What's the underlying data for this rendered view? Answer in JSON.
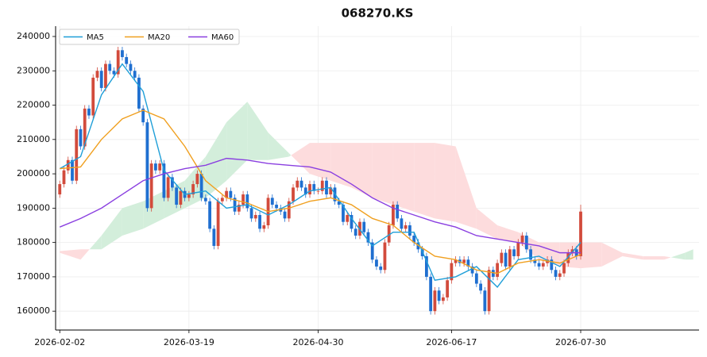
{
  "chart_data": {
    "type": "candlestick",
    "title": "068270.KS",
    "categories": [
      "2026-02-02",
      null,
      null,
      null,
      null,
      null,
      null,
      null,
      null,
      null,
      null,
      null,
      null,
      null,
      null,
      null,
      null,
      null,
      null,
      null,
      null,
      null,
      null,
      null,
      null,
      null,
      null,
      null,
      null,
      null,
      null,
      "2026-03-19",
      null,
      null,
      null,
      null,
      null,
      null,
      null,
      null,
      null,
      null,
      null,
      null,
      null,
      null,
      null,
      null,
      null,
      null,
      null,
      null,
      null,
      null,
      null,
      null,
      null,
      null,
      null,
      null,
      null,
      null,
      "2026-04-30",
      null,
      null,
      null,
      null,
      null,
      null,
      null,
      null,
      null,
      null,
      null,
      null,
      null,
      null,
      null,
      null,
      null,
      null,
      null,
      null,
      null,
      null,
      null,
      null,
      null,
      null,
      null,
      null,
      null,
      null,
      null,
      "2026-06-17",
      null,
      null,
      null,
      null,
      null,
      null,
      null,
      null,
      null,
      null,
      null,
      null,
      null,
      null,
      null,
      null,
      null,
      null,
      null,
      null,
      null,
      null,
      null,
      null,
      null,
      null,
      null,
      null,
      null,
      null,
      "2026-07-30"
    ],
    "xlim": [
      -1,
      153.4
    ],
    "ylim": [
      154500,
      243000
    ],
    "yticks": [
      160000,
      170000,
      180000,
      190000,
      200000,
      210000,
      220000,
      230000,
      240000
    ],
    "grid": true,
    "legend": "upper left",
    "up_color": "#d24b3c",
    "down_color": "#1f6fd0",
    "ohlc": [
      [
        194000,
        198000,
        193000,
        197000
      ],
      [
        197000,
        202000,
        196000,
        201000
      ],
      [
        201000,
        205000,
        200000,
        204000
      ],
      [
        204000,
        205000,
        197000,
        198000
      ],
      [
        198000,
        214000,
        197000,
        213000
      ],
      [
        213000,
        214000,
        207000,
        208000
      ],
      [
        208000,
        220000,
        207000,
        219000
      ],
      [
        219000,
        220000,
        216000,
        217000
      ],
      [
        217000,
        229000,
        216000,
        228000
      ],
      [
        228000,
        231000,
        227000,
        230000
      ],
      [
        230000,
        231000,
        224000,
        225000
      ],
      [
        225000,
        233000,
        224000,
        232000
      ],
      [
        232000,
        233000,
        229000,
        230000
      ],
      [
        230000,
        231000,
        228000,
        229000
      ],
      [
        229000,
        237000,
        228000,
        236000
      ],
      [
        236000,
        237000,
        233000,
        234000
      ],
      [
        234000,
        235000,
        231000,
        232000
      ],
      [
        232000,
        233000,
        229000,
        230000
      ],
      [
        230000,
        231000,
        227000,
        228000
      ],
      [
        228000,
        229000,
        218000,
        219000
      ],
      [
        219000,
        220000,
        214000,
        215000
      ],
      [
        215000,
        216000,
        189000,
        190000
      ],
      [
        190000,
        204000,
        189000,
        203000
      ],
      [
        203000,
        204000,
        200000,
        201000
      ],
      [
        201000,
        204000,
        200000,
        203000
      ],
      [
        203000,
        204000,
        192000,
        193000
      ],
      [
        193000,
        200000,
        192000,
        199000
      ],
      [
        199000,
        200000,
        195000,
        196000
      ],
      [
        196000,
        197000,
        190000,
        191000
      ],
      [
        191000,
        196000,
        190000,
        195000
      ],
      [
        195000,
        196000,
        192000,
        193000
      ],
      [
        193000,
        195000,
        192000,
        194000
      ],
      [
        194000,
        198000,
        193000,
        197000
      ],
      [
        197000,
        201000,
        196000,
        200000
      ],
      [
        200000,
        201000,
        192000,
        193000
      ],
      [
        193000,
        194000,
        191000,
        192000
      ],
      [
        192000,
        193000,
        183000,
        184000
      ],
      [
        184000,
        185000,
        178000,
        179000
      ],
      [
        179000,
        193000,
        178000,
        192000
      ],
      [
        192000,
        194000,
        191000,
        193000
      ],
      [
        193000,
        196000,
        192000,
        195000
      ],
      [
        195000,
        196000,
        192000,
        193000
      ],
      [
        193000,
        194000,
        188000,
        189000
      ],
      [
        189000,
        192000,
        188000,
        191000
      ],
      [
        191000,
        195000,
        190000,
        194000
      ],
      [
        194000,
        195000,
        189000,
        190000
      ],
      [
        190000,
        191000,
        186000,
        187000
      ],
      [
        187000,
        189000,
        186000,
        188000
      ],
      [
        188000,
        189000,
        183000,
        184000
      ],
      [
        184000,
        186000,
        183000,
        185000
      ],
      [
        185000,
        194000,
        184000,
        193000
      ],
      [
        193000,
        194000,
        190000,
        191000
      ],
      [
        191000,
        192000,
        189000,
        190000
      ],
      [
        190000,
        191000,
        188000,
        189000
      ],
      [
        189000,
        190000,
        186000,
        187000
      ],
      [
        187000,
        193000,
        186000,
        192000
      ],
      [
        192000,
        197000,
        191000,
        196000
      ],
      [
        196000,
        199000,
        195000,
        198000
      ],
      [
        198000,
        199000,
        195000,
        196000
      ],
      [
        196000,
        197000,
        193000,
        194000
      ],
      [
        194000,
        198000,
        193000,
        197000
      ],
      [
        197000,
        198000,
        194000,
        195000
      ],
      [
        195000,
        196000,
        194000,
        195000
      ],
      [
        195000,
        199000,
        194000,
        198000
      ],
      [
        198000,
        199000,
        193000,
        194000
      ],
      [
        194000,
        197000,
        193000,
        196000
      ],
      [
        196000,
        197000,
        191000,
        192000
      ],
      [
        192000,
        193000,
        190000,
        191000
      ],
      [
        191000,
        192000,
        185000,
        186000
      ],
      [
        186000,
        189000,
        185000,
        188000
      ],
      [
        188000,
        189000,
        183000,
        184000
      ],
      [
        184000,
        185000,
        181000,
        182000
      ],
      [
        182000,
        187000,
        181000,
        186000
      ],
      [
        186000,
        187000,
        182000,
        183000
      ],
      [
        183000,
        184000,
        179000,
        180000
      ],
      [
        180000,
        181000,
        174000,
        175000
      ],
      [
        175000,
        176000,
        172000,
        173000
      ],
      [
        173000,
        174000,
        171000,
        172000
      ],
      [
        172000,
        181000,
        171000,
        180000
      ],
      [
        180000,
        186000,
        179000,
        185000
      ],
      [
        185000,
        192000,
        184000,
        191000
      ],
      [
        191000,
        192000,
        186000,
        187000
      ],
      [
        187000,
        188000,
        183000,
        184000
      ],
      [
        184000,
        186000,
        183000,
        185000
      ],
      [
        185000,
        186000,
        181000,
        182000
      ],
      [
        182000,
        183000,
        179000,
        180000
      ],
      [
        180000,
        181000,
        177000,
        178000
      ],
      [
        178000,
        179000,
        175000,
        176000
      ],
      [
        176000,
        177000,
        169000,
        170000
      ],
      [
        170000,
        171000,
        159000,
        160000
      ],
      [
        160000,
        167000,
        159000,
        166000
      ],
      [
        166000,
        167000,
        162000,
        163000
      ],
      [
        163000,
        165000,
        162000,
        164000
      ],
      [
        164000,
        170000,
        163000,
        169000
      ],
      [
        169000,
        175000,
        168000,
        174000
      ],
      [
        174000,
        176000,
        173000,
        175000
      ],
      [
        175000,
        176000,
        173000,
        174000
      ],
      [
        174000,
        176000,
        173000,
        175000
      ],
      [
        175000,
        176000,
        172000,
        173000
      ],
      [
        173000,
        174000,
        170000,
        171000
      ],
      [
        171000,
        172000,
        167000,
        168000
      ],
      [
        168000,
        169000,
        165000,
        166000
      ],
      [
        166000,
        167000,
        159000,
        160000
      ],
      [
        160000,
        173000,
        159000,
        172000
      ],
      [
        172000,
        173000,
        169000,
        170000
      ],
      [
        170000,
        175000,
        169000,
        174000
      ],
      [
        174000,
        178000,
        173000,
        177000
      ],
      [
        177000,
        178000,
        172000,
        173000
      ],
      [
        173000,
        179000,
        172000,
        178000
      ],
      [
        178000,
        179000,
        175000,
        176000
      ],
      [
        176000,
        181000,
        175000,
        180000
      ],
      [
        180000,
        183000,
        179000,
        182000
      ],
      [
        182000,
        183000,
        177000,
        178000
      ],
      [
        178000,
        179000,
        174000,
        175000
      ],
      [
        175000,
        176000,
        173000,
        174000
      ],
      [
        174000,
        175000,
        172000,
        173000
      ],
      [
        173000,
        175000,
        172000,
        174000
      ],
      [
        174000,
        176000,
        173000,
        175000
      ],
      [
        175000,
        176000,
        171000,
        172000
      ],
      [
        172000,
        173000,
        169000,
        170000
      ],
      [
        170000,
        172000,
        169000,
        171000
      ],
      [
        171000,
        175000,
        170000,
        174000
      ],
      [
        174000,
        178000,
        173000,
        177000
      ],
      [
        177000,
        179000,
        176000,
        178000
      ],
      [
        178000,
        179000,
        175000,
        176000
      ],
      [
        176000,
        191000,
        175000,
        189000
      ]
    ],
    "series": [
      {
        "name": "MA5",
        "color": "#1f9fd8",
        "x": [
          0,
          5,
          10,
          15,
          20,
          25,
          30,
          35,
          40,
          45,
          50,
          55,
          60,
          65,
          70,
          75,
          80,
          85,
          90,
          95,
          100,
          105,
          110,
          115,
          120,
          125
        ],
        "values": [
          201500,
          205000,
          223000,
          232000,
          224000,
          201000,
          194000,
          195000,
          190000,
          191000,
          188000,
          191000,
          195000,
          196000,
          187000,
          179000,
          183000,
          183000,
          169000,
          170000,
          173000,
          167000,
          175000,
          176000,
          173000,
          180000
        ]
      },
      {
        "name": "MA20",
        "color": "#f0a020",
        "x": [
          0,
          5,
          10,
          15,
          20,
          25,
          30,
          35,
          40,
          45,
          50,
          55,
          60,
          65,
          70,
          75,
          80,
          85,
          90,
          95,
          100,
          105,
          110,
          115,
          120,
          125
        ],
        "values": [
          201500,
          202000,
          210000,
          216000,
          218500,
          216000,
          208000,
          198000,
          193000,
          191500,
          189000,
          190000,
          192000,
          193000,
          191000,
          187000,
          185000,
          180000,
          176000,
          175000,
          172000,
          171000,
          174000,
          175000,
          174000,
          176500
        ]
      },
      {
        "name": "MA60",
        "color": "#8a3fe0",
        "x": [
          0,
          5,
          10,
          15,
          20,
          25,
          30,
          35,
          40,
          45,
          50,
          55,
          60,
          65,
          70,
          75,
          80,
          85,
          90,
          95,
          100,
          105,
          110,
          115,
          120,
          125
        ],
        "values": [
          184500,
          187000,
          190000,
          194000,
          198000,
          200000,
          201500,
          202500,
          204500,
          204000,
          203000,
          202500,
          202000,
          200500,
          197000,
          193000,
          190000,
          188000,
          186000,
          184500,
          182000,
          181000,
          180000,
          179000,
          177000,
          177000
        ]
      }
    ],
    "cloud": {
      "bull_color": "#d3eedb",
      "bear_color": "#fddcdd",
      "x": [
        0,
        5,
        10,
        15,
        20,
        25,
        30,
        35,
        40,
        45,
        50,
        55,
        60,
        65,
        70,
        75,
        80,
        85,
        90,
        95,
        100,
        105,
        110,
        115,
        120,
        125,
        130,
        135,
        140,
        145,
        150,
        152
      ],
      "span_a": [
        177000,
        175000,
        182000,
        190000,
        192000,
        195000,
        198000,
        205000,
        215000,
        221000,
        212000,
        206000,
        200000,
        198000,
        196000,
        193000,
        191000,
        189000,
        187000,
        186000,
        184000,
        181000,
        180000,
        175000,
        173000,
        172500,
        173000,
        176000,
        175000,
        175000,
        177000,
        178000
      ],
      "span_b": [
        177500,
        178000,
        178000,
        182000,
        184000,
        187000,
        190000,
        193000,
        198000,
        204000,
        204000,
        205000,
        209000,
        209000,
        209000,
        209000,
        209000,
        209000,
        209000,
        208000,
        190000,
        185000,
        183000,
        180000,
        180000,
        180000,
        180000,
        177000,
        176000,
        176000,
        175000,
        175000
      ]
    }
  }
}
